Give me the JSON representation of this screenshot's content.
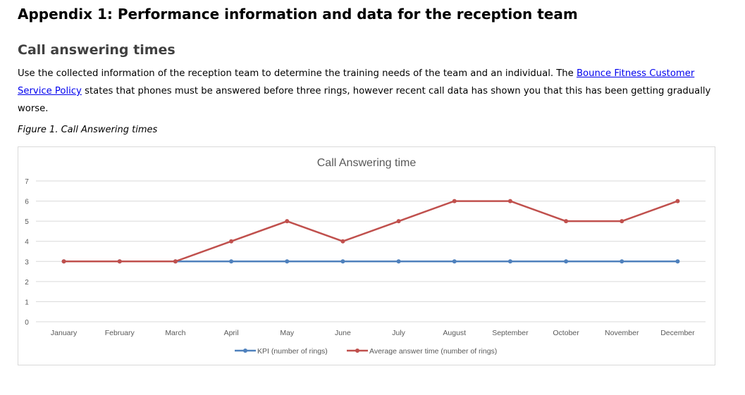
{
  "heading": "Appendix 1: Performance information and data for the reception team",
  "subheading": "Call answering times",
  "paragraph": {
    "before_link": "Use the collected information of the reception team to determine the training needs of the team and an individual. The ",
    "link_text": "Bounce Fitness Customer Service Policy",
    "after_link": " states that phones must be answered before three rings, however recent call data has shown you that this has been getting gradually worse."
  },
  "figure_caption": "Figure 1. Call Answering times",
  "chart_data": {
    "type": "line",
    "title": "Call Answering time",
    "xlabel": "",
    "ylabel": "",
    "categories": [
      "January",
      "February",
      "March",
      "April",
      "May",
      "June",
      "July",
      "August",
      "September",
      "October",
      "November",
      "December"
    ],
    "ylim": [
      0,
      7
    ],
    "yticks": [
      "0",
      "1",
      "2",
      "3",
      "4",
      "5",
      "6",
      "7"
    ],
    "grid": true,
    "legend_position": "bottom",
    "series": [
      {
        "name": "KPI (number of rings)",
        "color": "#4f81bd",
        "values": [
          3,
          3,
          3,
          3,
          3,
          3,
          3,
          3,
          3,
          3,
          3,
          3
        ]
      },
      {
        "name": "Average answer time (number of rings)",
        "color": "#c0504d",
        "values": [
          3,
          3,
          3,
          4,
          5,
          4,
          5,
          6,
          6,
          5,
          5,
          6
        ]
      }
    ]
  }
}
